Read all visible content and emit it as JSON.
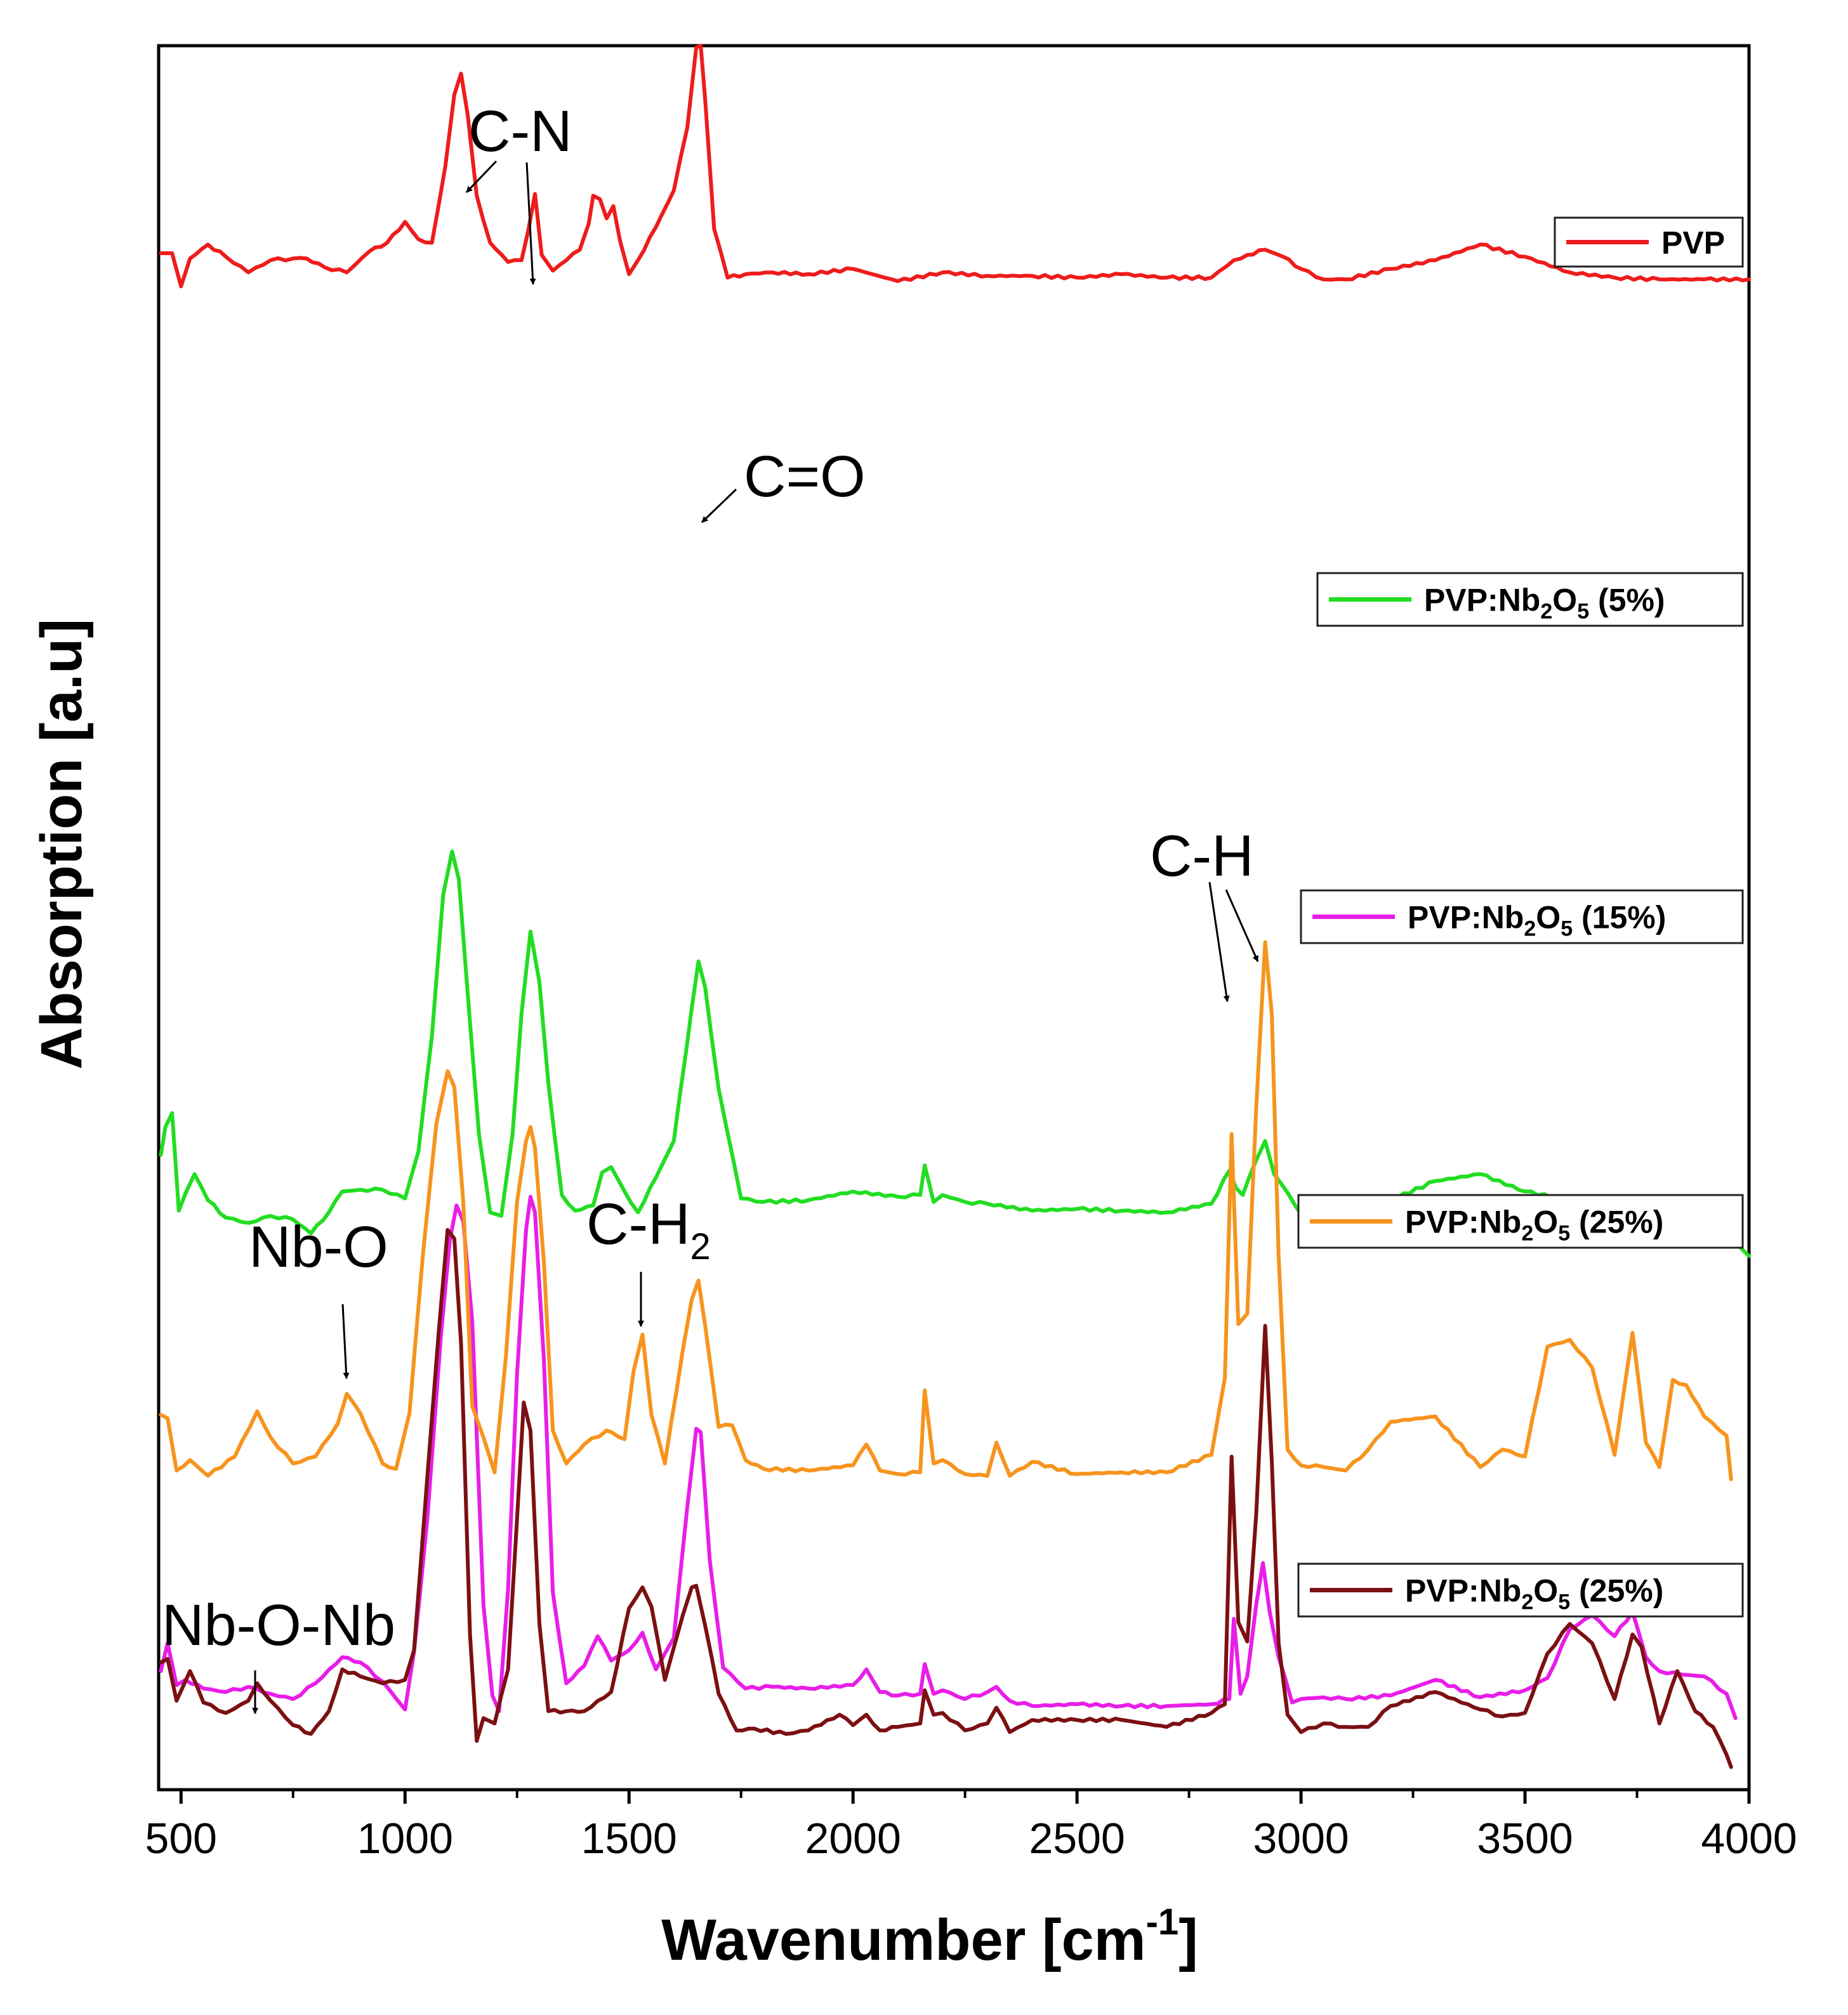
{
  "chart_data": {
    "type": "line",
    "title": "",
    "xlabel": "Wavenumber [cm",
    "xlabel_sup": "-1",
    "xlabel_end": "]",
    "ylabel": "Absorption [a.u]",
    "xlim": [
      450,
      4000
    ],
    "ylim": [
      0,
      100
    ],
    "xticks": [
      500,
      1000,
      1500,
      2000,
      2500,
      3000,
      3500,
      4000
    ],
    "xtick_labels": [
      "500",
      "1000",
      "1500",
      "2000",
      "2500",
      "3000",
      "3500",
      "4000"
    ],
    "grid": false,
    "legend_placement": "right, one entry beside each trace",
    "series": [
      {
        "name": "PVP",
        "label_parts": [
          "PVP"
        ],
        "color": "#ee1c1c",
        "x": [
          455,
          480,
          500,
          520,
          560,
          600,
          650,
          700,
          750,
          780,
          820,
          870,
          920,
          960,
          1000,
          1030,
          1060,
          1090,
          1110,
          1125,
          1140,
          1160,
          1190,
          1230,
          1260,
          1275,
          1290,
          1305,
          1330,
          1360,
          1390,
          1410,
          1420,
          1435,
          1450,
          1465,
          1480,
          1500,
          1520,
          1560,
          1600,
          1630,
          1650,
          1660,
          1670,
          1690,
          1720,
          1760,
          1820,
          1900,
          2000,
          2100,
          2200,
          2300,
          2400,
          2500,
          2600,
          2700,
          2800,
          2850,
          2880,
          2920,
          2960,
          3000,
          3050,
          3100,
          3200,
          3300,
          3400,
          3500,
          3600,
          3700,
          3800,
          3900,
          4000
        ],
        "y": [
          88.1,
          88.1,
          86.2,
          87.8,
          88.6,
          87.9,
          87.0,
          87.7,
          87.8,
          87.8,
          87.3,
          87.0,
          88.2,
          88.7,
          89.9,
          88.9,
          88.7,
          93.1,
          97.2,
          98.4,
          96.0,
          91.4,
          88.7,
          87.6,
          87.7,
          89.4,
          91.5,
          88.0,
          87.1,
          87.7,
          88.3,
          89.8,
          91.4,
          91.2,
          90.1,
          90.8,
          88.8,
          86.9,
          87.7,
          89.6,
          91.7,
          95.3,
          99.9,
          100.0,
          96.9,
          89.5,
          86.7,
          86.9,
          87.0,
          86.9,
          87.2,
          86.5,
          87.0,
          86.8,
          86.8,
          86.7,
          86.9,
          86.7,
          86.7,
          87.7,
          88.0,
          88.3,
          87.9,
          87.2,
          86.6,
          86.6,
          87.2,
          87.7,
          88.6,
          87.9,
          87.0,
          86.7,
          86.6,
          86.6,
          86.6
        ]
      },
      {
        "name": "PVP:Nb2O5 (5%)",
        "label_parts": [
          "PVP:Nb",
          "2",
          "O",
          "5",
          " (5%)"
        ],
        "color": "#22dd22",
        "x": [
          455,
          465,
          480,
          495,
          510,
          530,
          560,
          600,
          650,
          700,
          750,
          790,
          830,
          860,
          900,
          950,
          1000,
          1030,
          1060,
          1085,
          1105,
          1120,
          1140,
          1165,
          1190,
          1215,
          1240,
          1260,
          1280,
          1300,
          1320,
          1350,
          1380,
          1420,
          1440,
          1460,
          1490,
          1520,
          1560,
          1600,
          1640,
          1655,
          1670,
          1700,
          1750,
          1800,
          1900,
          2000,
          2100,
          2150,
          2160,
          2180,
          2200,
          2250,
          2300,
          2400,
          2500,
          2600,
          2700,
          2800,
          2840,
          2855,
          2870,
          2900,
          2920,
          2940,
          2960,
          3000,
          3050,
          3100,
          3200,
          3300,
          3400,
          3500,
          3600,
          3650,
          3700,
          3800,
          3900,
          3950,
          4000
        ],
        "y": [
          36.4,
          38.0,
          38.8,
          33.2,
          34.2,
          35.3,
          33.8,
          32.8,
          32.5,
          32.9,
          32.7,
          31.9,
          33.1,
          34.3,
          34.4,
          34.4,
          33.9,
          36.6,
          43.2,
          51.3,
          53.8,
          52.2,
          45.6,
          37.6,
          33.1,
          32.9,
          37.6,
          44.5,
          49.2,
          46.3,
          40.5,
          34.1,
          33.2,
          33.5,
          35.4,
          35.7,
          34.3,
          33.1,
          35.1,
          37.2,
          44.8,
          47.5,
          46.0,
          40.2,
          33.9,
          33.7,
          33.8,
          34.3,
          34.0,
          34.1,
          35.8,
          33.7,
          34.1,
          33.7,
          33.6,
          33.2,
          33.3,
          33.2,
          33.1,
          33.6,
          35.5,
          34.5,
          34.1,
          36.1,
          37.2,
          35.3,
          34.6,
          33.0,
          32.7,
          33.1,
          33.8,
          34.9,
          35.3,
          34.3,
          33.8,
          32.4,
          32.8,
          32.8,
          32.3,
          32.0,
          30.6
        ]
      },
      {
        "name": "PVP:Nb2O5 (15%)",
        "label_parts": [
          "PVP:Nb",
          "2",
          "O",
          "5",
          " (15%)"
        ],
        "color": "#e81ee8",
        "x": [
          455,
          470,
          490,
          510,
          550,
          600,
          650,
          700,
          750,
          800,
          860,
          900,
          950,
          1000,
          1020,
          1050,
          1080,
          1100,
          1115,
          1130,
          1150,
          1175,
          1195,
          1210,
          1230,
          1250,
          1270,
          1280,
          1290,
          1310,
          1330,
          1360,
          1400,
          1430,
          1460,
          1500,
          1530,
          1560,
          1600,
          1630,
          1650,
          1660,
          1680,
          1710,
          1760,
          1820,
          1900,
          2000,
          2030,
          2060,
          2100,
          2150,
          2160,
          2180,
          2200,
          2250,
          2300,
          2320,
          2350,
          2400,
          2500,
          2600,
          2700,
          2800,
          2840,
          2850,
          2865,
          2880,
          2900,
          2915,
          2930,
          2950,
          2980,
          3000,
          3050,
          3100,
          3200,
          3300,
          3400,
          3500,
          3550,
          3600,
          3650,
          3700,
          3740,
          3770,
          3800,
          3850,
          3900,
          3950,
          3970
        ],
        "y": [
          6.8,
          8.4,
          6.0,
          6.3,
          5.8,
          5.6,
          5.9,
          5.5,
          5.2,
          6.1,
          7.6,
          7.3,
          6.2,
          4.6,
          7.9,
          15.6,
          26.0,
          31.5,
          33.5,
          32.6,
          26.9,
          10.6,
          5.4,
          4.5,
          11.5,
          23.8,
          32.1,
          34.0,
          33.1,
          24.6,
          11.3,
          6.1,
          7.1,
          8.8,
          7.4,
          8.0,
          9.0,
          6.9,
          8.7,
          16.2,
          20.7,
          20.5,
          13.2,
          7.0,
          5.8,
          5.9,
          5.8,
          6.0,
          6.9,
          5.6,
          5.4,
          5.5,
          7.2,
          5.5,
          5.7,
          5.2,
          5.6,
          5.9,
          5.1,
          4.8,
          4.9,
          4.8,
          4.8,
          4.9,
          5.2,
          9.8,
          5.5,
          6.5,
          10.6,
          13.0,
          10.2,
          7.6,
          5.0,
          5.2,
          5.3,
          5.2,
          5.4,
          6.3,
          5.3,
          5.7,
          6.4,
          9.2,
          10.0,
          8.8,
          10.2,
          7.6,
          6.8,
          6.6,
          6.5,
          5.5,
          4.1
        ]
      },
      {
        "name": "PVP:Nb2O5 (25%)",
        "label_parts": [
          "PVP:Nb",
          "2",
          "O",
          "5",
          " (25%)"
        ],
        "color": "#f7941d",
        "x": [
          455,
          470,
          490,
          520,
          560,
          620,
          670,
          700,
          750,
          800,
          850,
          870,
          900,
          950,
          980,
          1010,
          1040,
          1070,
          1095,
          1110,
          1130,
          1150,
          1175,
          1200,
          1225,
          1250,
          1270,
          1280,
          1290,
          1310,
          1330,
          1360,
          1400,
          1450,
          1490,
          1510,
          1530,
          1550,
          1580,
          1620,
          1640,
          1655,
          1670,
          1700,
          1730,
          1760,
          1800,
          1900,
          2000,
          2030,
          2060,
          2100,
          2150,
          2160,
          2180,
          2200,
          2250,
          2300,
          2320,
          2350,
          2400,
          2500,
          2600,
          2700,
          2800,
          2830,
          2845,
          2860,
          2880,
          2900,
          2920,
          2935,
          2950,
          2970,
          3000,
          3050,
          3100,
          3150,
          3200,
          3300,
          3400,
          3450,
          3500,
          3550,
          3600,
          3650,
          3700,
          3740,
          3770,
          3800,
          3830,
          3860,
          3900,
          3950,
          3960
        ],
        "y": [
          21.5,
          21.3,
          18.3,
          18.9,
          18.0,
          19.1,
          21.7,
          20.2,
          18.7,
          19.1,
          21.0,
          22.7,
          21.6,
          18.7,
          18.4,
          21.6,
          30.7,
          38.2,
          41.2,
          40.3,
          33.7,
          22.0,
          20.2,
          18.2,
          24.8,
          33.7,
          37.2,
          38.0,
          36.8,
          30.2,
          20.6,
          18.7,
          19.8,
          20.6,
          20.1,
          24.0,
          26.1,
          21.5,
          18.7,
          25.2,
          28.1,
          29.2,
          26.6,
          20.8,
          20.9,
          18.9,
          18.4,
          18.3,
          18.6,
          19.8,
          18.3,
          18.1,
          18.2,
          22.9,
          18.7,
          18.9,
          18.1,
          18.0,
          19.9,
          18.0,
          18.8,
          18.1,
          18.2,
          18.2,
          19.2,
          23.6,
          37.6,
          26.7,
          27.3,
          39.1,
          48.6,
          44.4,
          30.6,
          19.5,
          18.6,
          18.5,
          18.3,
          19.5,
          21.1,
          21.4,
          18.5,
          19.5,
          19.1,
          25.4,
          25.8,
          24.2,
          19.2,
          26.2,
          19.9,
          18.5,
          23.5,
          23.2,
          21.4,
          20.3,
          17.8
        ]
      },
      {
        "name": "PVP:Nb2O5 (25%)",
        "label_parts": [
          "PVP:Nb",
          "2",
          "O",
          "5",
          " (25%)"
        ],
        "color": "#7b1012",
        "x": [
          455,
          470,
          490,
          520,
          550,
          600,
          650,
          670,
          700,
          750,
          790,
          830,
          860,
          900,
          950,
          1000,
          1020,
          1050,
          1075,
          1095,
          1110,
          1125,
          1145,
          1160,
          1175,
          1200,
          1230,
          1250,
          1265,
          1280,
          1300,
          1320,
          1360,
          1400,
          1460,
          1500,
          1530,
          1550,
          1580,
          1620,
          1640,
          1650,
          1670,
          1700,
          1740,
          1780,
          1850,
          1900,
          1970,
          2000,
          2030,
          2060,
          2100,
          2150,
          2160,
          2180,
          2200,
          2250,
          2300,
          2320,
          2350,
          2400,
          2500,
          2600,
          2700,
          2800,
          2830,
          2845,
          2860,
          2880,
          2900,
          2920,
          2935,
          2950,
          2970,
          3000,
          3050,
          3100,
          3150,
          3200,
          3300,
          3400,
          3450,
          3500,
          3550,
          3600,
          3650,
          3700,
          3740,
          3760,
          3800,
          3840,
          3880,
          3920,
          3950,
          3960
        ],
        "y": [
          7.3,
          7.5,
          5.1,
          6.8,
          5.0,
          4.4,
          5.1,
          6.1,
          5.1,
          3.7,
          3.2,
          4.5,
          6.9,
          6.5,
          6.1,
          6.3,
          8.0,
          18.0,
          26.2,
          32.1,
          31.6,
          25.6,
          8.9,
          2.8,
          4.1,
          3.8,
          6.9,
          15.5,
          22.2,
          20.6,
          9.5,
          4.5,
          4.5,
          4.5,
          5.6,
          10.4,
          11.6,
          10.5,
          6.3,
          10.0,
          11.6,
          11.7,
          9.4,
          5.5,
          3.4,
          3.5,
          3.2,
          3.4,
          4.3,
          3.7,
          4.3,
          3.4,
          3.6,
          3.8,
          5.7,
          4.3,
          4.4,
          3.4,
          3.8,
          4.7,
          3.3,
          4.0,
          4.0,
          4.0,
          3.6,
          4.4,
          4.9,
          19.1,
          9.6,
          8.5,
          15.8,
          26.6,
          18.7,
          8.4,
          4.3,
          3.3,
          3.8,
          3.6,
          3.6,
          4.8,
          5.6,
          4.6,
          4.2,
          4.4,
          7.8,
          9.5,
          8.4,
          5.2,
          8.9,
          8.2,
          3.8,
          6.8,
          4.5,
          3.6,
          2.0,
          1.3
        ]
      }
    ],
    "annotations": [
      {
        "text": "C-N"
      },
      {
        "text": "C=O"
      },
      {
        "text": "C-H"
      },
      {
        "text": "Nb-O"
      },
      {
        "text": "C-H",
        "sub": "2"
      },
      {
        "text": "Nb-O-Nb"
      }
    ]
  }
}
